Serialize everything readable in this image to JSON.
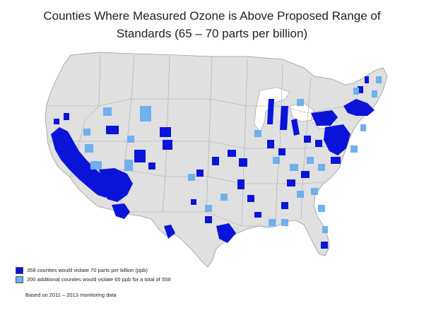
{
  "title": {
    "line1": "Counties Where Measured Ozone is Above Proposed Range of",
    "line2": "Standards (65 – 70 parts per billion)"
  },
  "colors": {
    "land": "#e0e0e0",
    "border": "#9a9a9a",
    "violate_70": "#0a14d8",
    "violate_65": "#6fb0ee"
  },
  "legend": [
    {
      "label": "358 counties would violate 70 parts per billion (ppb)",
      "color": "#0a14d8"
    },
    {
      "label": "200 additional counties would violate 65 ppb for a total of 558",
      "color": "#6fb0ee"
    }
  ],
  "note": "Based on 2011 – 2013 monitoring data"
}
